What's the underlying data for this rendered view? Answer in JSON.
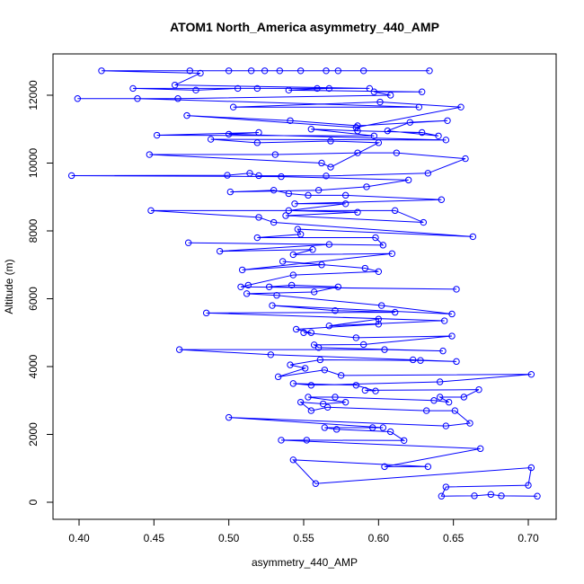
{
  "chart_data": {
    "type": "line",
    "title": "ATOM1 North_America asymmetry_440_AMP",
    "x_label": "asymmetry_440_AMP",
    "y_label": "Altitude (m)",
    "color": "#0000ff",
    "markers": true,
    "xlim": [
      0.3826,
      0.7186
    ],
    "ylim": [
      -503,
      13218
    ],
    "xticks": [
      {
        "value": 0.4,
        "label": "0.40"
      },
      {
        "value": 0.45,
        "label": "0.45"
      },
      {
        "value": 0.5,
        "label": "0.50"
      },
      {
        "value": 0.55,
        "label": "0.55"
      },
      {
        "value": 0.6,
        "label": "0.60"
      },
      {
        "value": 0.65,
        "label": "0.65"
      },
      {
        "value": 0.7,
        "label": "0.70"
      }
    ],
    "yticks": [
      0,
      2000,
      4000,
      6000,
      8000,
      10000,
      12000
    ],
    "x": [
      0.706,
      0.682,
      0.675,
      0.664,
      0.642,
      0.645,
      0.7,
      0.702,
      0.558,
      0.543,
      0.633,
      0.604,
      0.668,
      0.535,
      0.552,
      0.617,
      0.608,
      0.572,
      0.564,
      0.596,
      0.603,
      0.5,
      0.645,
      0.661,
      0.651,
      0.632,
      0.566,
      0.555,
      0.548,
      0.563,
      0.578,
      0.553,
      0.571,
      0.637,
      0.647,
      0.641,
      0.657,
      0.667,
      0.591,
      0.598,
      0.585,
      0.543,
      0.555,
      0.641,
      0.702,
      0.575,
      0.564,
      0.533,
      0.551,
      0.541,
      0.561,
      0.628,
      0.652,
      0.623,
      0.528,
      0.467,
      0.604,
      0.643,
      0.56,
      0.557,
      0.59,
      0.649,
      0.585,
      0.55,
      0.555,
      0.545,
      0.6,
      0.6,
      0.567,
      0.644,
      0.485,
      0.611,
      0.571,
      0.529,
      0.649,
      0.602,
      0.532,
      0.512,
      0.557,
      0.573,
      0.542,
      0.527,
      0.652,
      0.508,
      0.513,
      0.543,
      0.6,
      0.591,
      0.536,
      0.562,
      0.509,
      0.609,
      0.543,
      0.556,
      0.494,
      0.567,
      0.473,
      0.603,
      0.598,
      0.519,
      0.548,
      0.546,
      0.663,
      0.53,
      0.52,
      0.448,
      0.611,
      0.63,
      0.538,
      0.586,
      0.54,
      0.578,
      0.544,
      0.642,
      0.578,
      0.553,
      0.54,
      0.53,
      0.501,
      0.56,
      0.592,
      0.62,
      0.535,
      0.395,
      0.499,
      0.514,
      0.52,
      0.565,
      0.633,
      0.658,
      0.612,
      0.586,
      0.531,
      0.447,
      0.562,
      0.568,
      0.6,
      0.568,
      0.519,
      0.488,
      0.645,
      0.5,
      0.52,
      0.452,
      0.597,
      0.555,
      0.586,
      0.629,
      0.64,
      0.606,
      0.621,
      0.646,
      0.586,
      0.541,
      0.472,
      0.585,
      0.655,
      0.601,
      0.503,
      0.627,
      0.439,
      0.399,
      0.466,
      0.608,
      0.597,
      0.629,
      0.54,
      0.567,
      0.436,
      0.478,
      0.506,
      0.519,
      0.559,
      0.594,
      0.464,
      0.481,
      0.415,
      0.474,
      0.5,
      0.515,
      0.524,
      0.534,
      0.548,
      0.565,
      0.573,
      0.59,
      0.634
    ],
    "values": [
      180,
      190,
      230,
      190,
      180,
      450,
      500,
      1020,
      550,
      1250,
      1050,
      1050,
      1580,
      1830,
      1830,
      1820,
      2080,
      2150,
      2200,
      2200,
      2200,
      2500,
      2250,
      2330,
      2700,
      2700,
      2800,
      2700,
      2950,
      2900,
      2950,
      3100,
      3100,
      3000,
      2950,
      3100,
      3100,
      3320,
      3300,
      3280,
      3450,
      3500,
      3450,
      3550,
      3770,
      3740,
      3900,
      3700,
      3950,
      4050,
      4200,
      4180,
      4150,
      4200,
      4350,
      4500,
      4500,
      4460,
      4560,
      4640,
      4650,
      4900,
      4850,
      5000,
      5000,
      5100,
      5250,
      5400,
      5200,
      5350,
      5580,
      5600,
      5650,
      5800,
      5550,
      5800,
      6100,
      6150,
      6200,
      6350,
      6400,
      6350,
      6280,
      6350,
      6400,
      6700,
      6800,
      6900,
      7100,
      7000,
      6850,
      7330,
      7300,
      7450,
      7400,
      7600,
      7650,
      7580,
      7800,
      7800,
      7900,
      8050,
      7830,
      8250,
      8400,
      8600,
      8600,
      8250,
      8450,
      8550,
      8600,
      8800,
      8800,
      8920,
      9050,
      9050,
      9100,
      9200,
      9150,
      9200,
      9300,
      9500,
      9600,
      9630,
      9640,
      9700,
      9630,
      9620,
      9700,
      10130,
      10300,
      10300,
      10250,
      10250,
      10000,
      9880,
      10600,
      10650,
      10600,
      10700,
      10680,
      10850,
      10900,
      10820,
      10800,
      11000,
      10950,
      10900,
      10800,
      10950,
      11200,
      11250,
      11100,
      11250,
      11400,
      11050,
      11650,
      11800,
      11650,
      11650,
      11900,
      11900,
      11900,
      12000,
      12100,
      12100,
      12150,
      12200,
      12200,
      12150,
      12200,
      12200,
      12200,
      12200,
      12300,
      12650,
      12720,
      12720,
      12720,
      12720,
      12720,
      12720,
      12720,
      12720,
      12720,
      12720,
      12720
    ]
  }
}
